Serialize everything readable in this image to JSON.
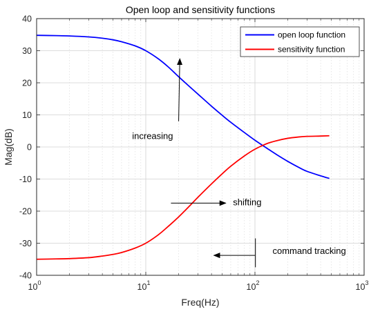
{
  "chart_data": {
    "type": "line",
    "title": "Open loop and sensitivity functions",
    "xlabel": "Freq(Hz)",
    "ylabel": "Mag(dB)",
    "x_scale": "log",
    "xlim": [
      1,
      1000
    ],
    "ylim": [
      -40,
      40
    ],
    "x_ticks": [
      {
        "value": 1,
        "base": "10",
        "exp": "0"
      },
      {
        "value": 10,
        "base": "10",
        "exp": "1"
      },
      {
        "value": 100,
        "base": "10",
        "exp": "2"
      },
      {
        "value": 1000,
        "base": "10",
        "exp": "3"
      }
    ],
    "y_ticks": [
      40,
      30,
      20,
      10,
      0,
      -10,
      -20,
      -30,
      -40
    ],
    "grid": true,
    "legend_position": "top-right",
    "series": [
      {
        "name": "open loop function",
        "color": "#0000ff",
        "x": [
          1,
          1.5,
          2,
          3,
          4,
          5,
          6,
          8,
          10,
          13,
          16,
          20,
          25,
          30,
          40,
          50,
          60,
          80,
          100,
          130,
          160,
          200,
          250,
          300,
          400,
          480
        ],
        "y": [
          34.8,
          34.7,
          34.6,
          34.3,
          33.9,
          33.4,
          32.8,
          31.5,
          30.0,
          27.5,
          25.0,
          21.9,
          18.9,
          16.5,
          12.7,
          9.9,
          7.7,
          4.5,
          2.1,
          -0.5,
          -2.5,
          -4.5,
          -6.3,
          -7.6,
          -9.0,
          -9.8
        ]
      },
      {
        "name": "sensitivity function",
        "color": "#ff0000",
        "x": [
          1,
          1.5,
          2,
          3,
          4,
          5,
          6,
          8,
          10,
          13,
          16,
          20,
          25,
          30,
          40,
          50,
          60,
          80,
          100,
          130,
          160,
          200,
          250,
          300,
          400,
          480
        ],
        "y": [
          -35.0,
          -34.9,
          -34.8,
          -34.5,
          -34.0,
          -33.5,
          -32.9,
          -31.5,
          -30.0,
          -27.4,
          -24.8,
          -21.8,
          -18.5,
          -15.7,
          -11.5,
          -8.4,
          -6.0,
          -2.8,
          -0.7,
          1.1,
          2.0,
          2.7,
          3.1,
          3.3,
          3.4,
          3.5
        ]
      }
    ],
    "annotations": [
      {
        "text": "increasing",
        "x": 7.5,
        "y": 2.5,
        "arrow": {
          "from": [
            20,
            8
          ],
          "to": [
            20.5,
            27.5
          ]
        }
      },
      {
        "text": "shifting",
        "x": 63,
        "y": -18.2,
        "arrow": {
          "from": [
            17,
            -17.5
          ],
          "to": [
            54,
            -17.5
          ]
        }
      },
      {
        "text": "command tracking",
        "x": 145,
        "y": -33.3,
        "arrow": {
          "from": [
            100,
            -33.8
          ],
          "to": [
            42,
            -33.8
          ]
        }
      },
      {
        "text": "",
        "marker": "vertical-line",
        "x": 101,
        "y_from": -28.5,
        "y_to": -37.5
      }
    ]
  }
}
